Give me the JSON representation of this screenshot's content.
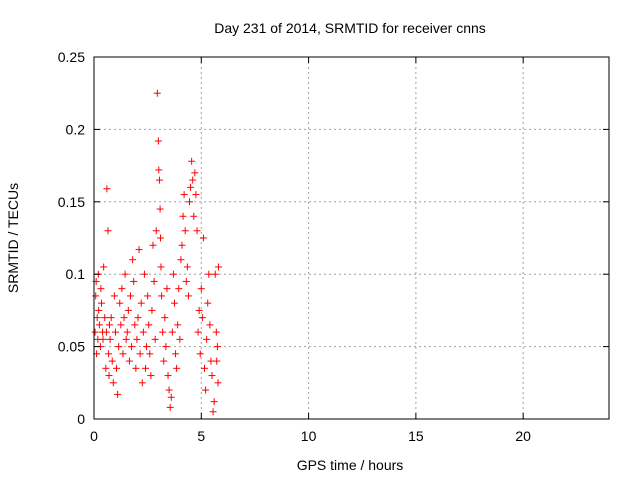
{
  "chart_data": {
    "type": "scatter",
    "title": "Day 231 of 2014, SRMTID for receiver cnns",
    "xlabel": "GPS time / hours",
    "ylabel": "SRMTID / TECUs",
    "xlim": [
      0,
      24
    ],
    "ylim": [
      0,
      0.25
    ],
    "x_ticks": [
      0,
      5,
      10,
      15,
      20
    ],
    "x_tick_labels": [
      "0",
      "5",
      "10",
      "15",
      "20"
    ],
    "y_ticks": [
      0,
      0.05,
      0.1,
      0.15,
      0.2,
      0.25
    ],
    "y_tick_labels": [
      "0",
      "0.05",
      "0.1",
      "0.15",
      "0.2",
      "0.25"
    ],
    "grid": true,
    "marker": "+",
    "series": [
      {
        "name": "SRMTID",
        "color": "#ff0000",
        "points": [
          [
            0.05,
            0.06
          ],
          [
            0.08,
            0.085
          ],
          [
            0.1,
            0.095
          ],
          [
            0.12,
            0.045
          ],
          [
            0.15,
            0.07
          ],
          [
            0.18,
            0.055
          ],
          [
            0.2,
            0.1
          ],
          [
            0.22,
            0.075
          ],
          [
            0.25,
            0.065
          ],
          [
            0.3,
            0.05
          ],
          [
            0.32,
            0.09
          ],
          [
            0.35,
            0.08
          ],
          [
            0.4,
            0.06
          ],
          [
            0.42,
            0.055
          ],
          [
            0.45,
            0.105
          ],
          [
            0.5,
            0.07
          ],
          [
            0.55,
            0.035
          ],
          [
            0.58,
            0.06
          ],
          [
            0.6,
            0.159
          ],
          [
            0.65,
            0.13
          ],
          [
            0.68,
            0.045
          ],
          [
            0.7,
            0.03
          ],
          [
            0.72,
            0.065
          ],
          [
            0.75,
            0.055
          ],
          [
            0.8,
            0.07
          ],
          [
            0.85,
            0.04
          ],
          [
            0.9,
            0.025
          ],
          [
            0.95,
            0.085
          ],
          [
            1.0,
            0.06
          ],
          [
            1.05,
            0.035
          ],
          [
            1.1,
            0.017
          ],
          [
            1.15,
            0.05
          ],
          [
            1.2,
            0.08
          ],
          [
            1.25,
            0.065
          ],
          [
            1.3,
            0.09
          ],
          [
            1.35,
            0.045
          ],
          [
            1.4,
            0.07
          ],
          [
            1.45,
            0.1
          ],
          [
            1.5,
            0.055
          ],
          [
            1.55,
            0.06
          ],
          [
            1.6,
            0.075
          ],
          [
            1.65,
            0.04
          ],
          [
            1.7,
            0.085
          ],
          [
            1.75,
            0.05
          ],
          [
            1.8,
            0.11
          ],
          [
            1.85,
            0.095
          ],
          [
            1.9,
            0.065
          ],
          [
            1.95,
            0.035
          ],
          [
            2.0,
            0.055
          ],
          [
            2.05,
            0.07
          ],
          [
            2.1,
            0.117
          ],
          [
            2.15,
            0.045
          ],
          [
            2.2,
            0.08
          ],
          [
            2.25,
            0.025
          ],
          [
            2.3,
            0.06
          ],
          [
            2.35,
            0.1
          ],
          [
            2.4,
            0.035
          ],
          [
            2.45,
            0.05
          ],
          [
            2.5,
            0.085
          ],
          [
            2.55,
            0.065
          ],
          [
            2.6,
            0.045
          ],
          [
            2.65,
            0.03
          ],
          [
            2.7,
            0.075
          ],
          [
            2.75,
            0.12
          ],
          [
            2.8,
            0.095
          ],
          [
            2.85,
            0.055
          ],
          [
            2.9,
            0.13
          ],
          [
            2.95,
            0.225
          ],
          [
            3.0,
            0.192
          ],
          [
            3.02,
            0.172
          ],
          [
            3.05,
            0.165
          ],
          [
            3.08,
            0.145
          ],
          [
            3.1,
            0.125
          ],
          [
            3.12,
            0.105
          ],
          [
            3.15,
            0.085
          ],
          [
            3.2,
            0.06
          ],
          [
            3.25,
            0.04
          ],
          [
            3.3,
            0.07
          ],
          [
            3.35,
            0.05
          ],
          [
            3.4,
            0.09
          ],
          [
            3.45,
            0.03
          ],
          [
            3.5,
            0.02
          ],
          [
            3.55,
            0.008
          ],
          [
            3.6,
            0.015
          ],
          [
            3.65,
            0.06
          ],
          [
            3.7,
            0.1
          ],
          [
            3.75,
            0.08
          ],
          [
            3.8,
            0.045
          ],
          [
            3.85,
            0.035
          ],
          [
            3.9,
            0.065
          ],
          [
            3.95,
            0.09
          ],
          [
            4.0,
            0.055
          ],
          [
            4.05,
            0.11
          ],
          [
            4.1,
            0.12
          ],
          [
            4.15,
            0.14
          ],
          [
            4.2,
            0.155
          ],
          [
            4.25,
            0.13
          ],
          [
            4.3,
            0.095
          ],
          [
            4.35,
            0.105
          ],
          [
            4.4,
            0.085
          ],
          [
            4.45,
            0.15
          ],
          [
            4.5,
            0.16
          ],
          [
            4.55,
            0.178
          ],
          [
            4.6,
            0.165
          ],
          [
            4.65,
            0.14
          ],
          [
            4.7,
            0.17
          ],
          [
            4.75,
            0.155
          ],
          [
            4.8,
            0.13
          ],
          [
            4.85,
            0.06
          ],
          [
            4.9,
            0.075
          ],
          [
            4.95,
            0.045
          ],
          [
            5.0,
            0.09
          ],
          [
            5.05,
            0.07
          ],
          [
            5.1,
            0.125
          ],
          [
            5.15,
            0.035
          ],
          [
            5.2,
            0.02
          ],
          [
            5.25,
            0.055
          ],
          [
            5.3,
            0.08
          ],
          [
            5.35,
            0.1
          ],
          [
            5.4,
            0.065
          ],
          [
            5.45,
            0.04
          ],
          [
            5.5,
            0.03
          ],
          [
            5.55,
            0.005
          ],
          [
            5.6,
            0.012
          ],
          [
            5.65,
            0.1
          ],
          [
            5.7,
            0.06
          ],
          [
            5.72,
            0.04
          ],
          [
            5.75,
            0.05
          ],
          [
            5.78,
            0.025
          ],
          [
            5.8,
            0.105
          ]
        ]
      }
    ]
  }
}
